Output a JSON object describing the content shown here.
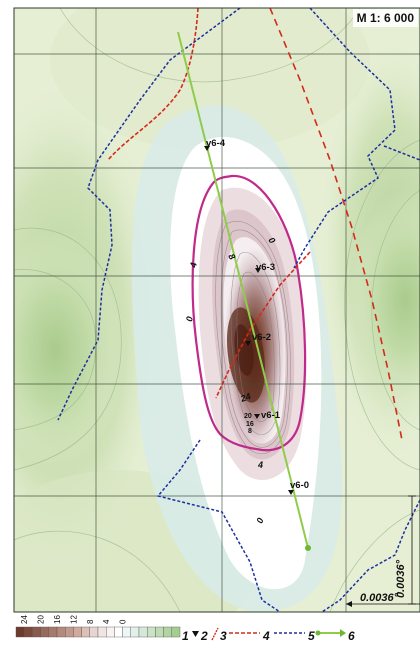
{
  "map": {
    "scale_label": "M 1: 6 000",
    "colors": {
      "background": "#eef3dd",
      "light_green": "#d8e8c4",
      "med_green": "#c2dba8",
      "dark_green": "#a9cb8d",
      "light_blue": "#dcecea",
      "grid": "#3b4e3b",
      "zero_band": "#ffffff",
      "anomaly_low": "#e6d8dc",
      "anomaly_mid": "#b08c90",
      "anomaly_high": "#6e3a2c",
      "contour_magenta": "#c02a8a",
      "line_red": "#d42a1a",
      "line_blue": "#1e2fa0",
      "profile_green": "#8fcc4a"
    },
    "contour_labels": [
      {
        "text": "0",
        "name": "contour-label-0-top"
      },
      {
        "text": "8",
        "name": "contour-label-8"
      },
      {
        "text": "4",
        "name": "contour-label-4-left"
      },
      {
        "text": "0",
        "name": "contour-label-0-left"
      },
      {
        "text": "24",
        "name": "contour-label-24"
      },
      {
        "text": "4",
        "name": "contour-label-4-bottom"
      },
      {
        "text": "0",
        "name": "contour-label-0-bottom"
      }
    ],
    "points": [
      {
        "label": "v6-4",
        "name": "station-v6-4"
      },
      {
        "label": "v6-3",
        "name": "station-v6-3"
      },
      {
        "label": "v6-2",
        "name": "station-v6-2"
      },
      {
        "label": "v6-1",
        "name": "station-v6-1"
      },
      {
        "label": "v6-0",
        "name": "station-v6-0"
      }
    ],
    "dimension_vertical": "0.0036°",
    "dimension_horizontal": "0.0036°"
  },
  "legend": {
    "tick_labels": [
      "24",
      "20",
      "16",
      "12",
      "8",
      "4",
      "0"
    ],
    "color_scale": [
      "#6e3a2c",
      "#7c4a3c",
      "#8a5a4c",
      "#986a5c",
      "#a67a6c",
      "#b48a7c",
      "#c29a8c",
      "#d0aa9c",
      "#dcc0b8",
      "#e8d4d0",
      "#f0e4e4",
      "#f8f2f2",
      "#ffffff",
      "#eef6f6",
      "#e2f0ea",
      "#d6e9d8",
      "#cae2c6",
      "#bedbb4",
      "#b2d4a2",
      "#a6cd90"
    ],
    "items": [
      {
        "num": "1",
        "name": "legend-item-1"
      },
      {
        "num": "2",
        "name": "legend-item-2"
      },
      {
        "num": "3",
        "name": "legend-item-3"
      },
      {
        "num": "4",
        "name": "legend-item-4"
      },
      {
        "num": "5",
        "name": "legend-item-5"
      },
      {
        "num": "6",
        "name": "legend-item-6"
      }
    ]
  }
}
